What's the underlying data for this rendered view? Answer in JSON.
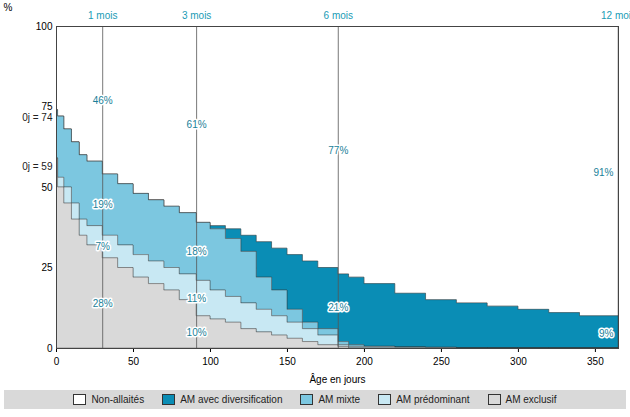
{
  "chart_data": {
    "type": "area",
    "stacked": true,
    "line_style": "step",
    "grid": true,
    "legend": "bottom",
    "x_label": "Âge en jours",
    "y_label": "%",
    "xlim": [
      0,
      365
    ],
    "ylim": [
      0,
      100
    ],
    "xticks": [
      0,
      50,
      100,
      150,
      200,
      250,
      300,
      350
    ],
    "yticks": [
      0,
      25,
      50,
      75,
      100
    ],
    "x": [
      0,
      1,
      5,
      10,
      15,
      20,
      30,
      40,
      50,
      60,
      70,
      80,
      91,
      100,
      110,
      120,
      130,
      140,
      150,
      160,
      170,
      183,
      190,
      200,
      220,
      240,
      260,
      280,
      300,
      320,
      340,
      365
    ],
    "series": [
      {
        "name": "Non-allaités",
        "color": "#ffffff",
        "values": [
          26,
          28,
          32,
          36,
          40,
          42,
          46,
          49,
          52,
          54,
          56,
          58,
          61,
          62,
          63,
          65,
          67,
          69,
          71,
          73,
          75,
          77,
          78,
          80,
          83,
          85,
          86,
          87,
          88,
          89,
          90,
          91
        ]
      },
      {
        "name": "AM avec diversification",
        "color": "#0a8db5",
        "values": [
          0,
          0,
          0,
          0,
          0,
          0,
          0,
          0,
          0,
          0,
          0,
          0,
          0,
          1,
          3,
          5,
          11,
          13,
          17,
          19,
          19,
          21,
          21,
          19.5,
          16.7,
          14.8,
          14,
          13,
          12,
          11,
          10,
          9
        ]
      },
      {
        "name": "AM mixte",
        "color": "#7cc7e0",
        "values": [
          15,
          19,
          18,
          19,
          20,
          20,
          19,
          19,
          19,
          19,
          19,
          19,
          18,
          19,
          18,
          16,
          10,
          8,
          4,
          2,
          2,
          1,
          0.5,
          0,
          0,
          0,
          0,
          0,
          0,
          0,
          0,
          0
        ]
      },
      {
        "name": "AM prédominant",
        "color": "#c8e8f3",
        "values": [
          0,
          3,
          5,
          5,
          5,
          6,
          7,
          7,
          7,
          7,
          7,
          8,
          11,
          9,
          8,
          8,
          7,
          6,
          5,
          4,
          3,
          0.5,
          0.5,
          0.5,
          0.3,
          0.2,
          0,
          0,
          0,
          0,
          0,
          0
        ]
      },
      {
        "name": "AM exclusif",
        "color": "#d9d9d9",
        "values": [
          59,
          50,
          45,
          40,
          35,
          32,
          28,
          25,
          22,
          20,
          18,
          15,
          10,
          9,
          8,
          6,
          5,
          4,
          3,
          2,
          1,
          0.5,
          0,
          0,
          0,
          0,
          0,
          0,
          0,
          0,
          0,
          0
        ]
      }
    ],
    "markers": [
      {
        "x": 30,
        "label": "1 mois"
      },
      {
        "x": 91,
        "label": "3 mois"
      },
      {
        "x": 183,
        "label": "6 mois"
      },
      {
        "x": 365,
        "label": "12 mois"
      }
    ],
    "annotations": [
      {
        "x": 30,
        "series": "Non-allaités",
        "text": "46%"
      },
      {
        "x": 30,
        "series": "AM mixte",
        "text": "19%"
      },
      {
        "x": 30,
        "series": "AM prédominant",
        "text": "7%"
      },
      {
        "x": 30,
        "series": "AM exclusif",
        "text": "28%"
      },
      {
        "x": 91,
        "series": "Non-allaités",
        "text": "61%"
      },
      {
        "x": 91,
        "series": "AM mixte",
        "text": "18%"
      },
      {
        "x": 91,
        "series": "AM prédominant",
        "text": "11%"
      },
      {
        "x": 91,
        "series": "AM exclusif",
        "text": "10%"
      },
      {
        "x": 183,
        "series": "Non-allaités",
        "text": "77%"
      },
      {
        "x": 183,
        "series": "AM avec diversification",
        "text": "21%"
      },
      {
        "x": 365,
        "series": "Non-allaités",
        "text": "91%"
      },
      {
        "x": 365,
        "series": "AM avec diversification",
        "text": "9%"
      }
    ],
    "side_labels": [
      {
        "y": 74,
        "text": "0j = 74"
      },
      {
        "y": 59,
        "text": "0j = 59"
      }
    ]
  }
}
